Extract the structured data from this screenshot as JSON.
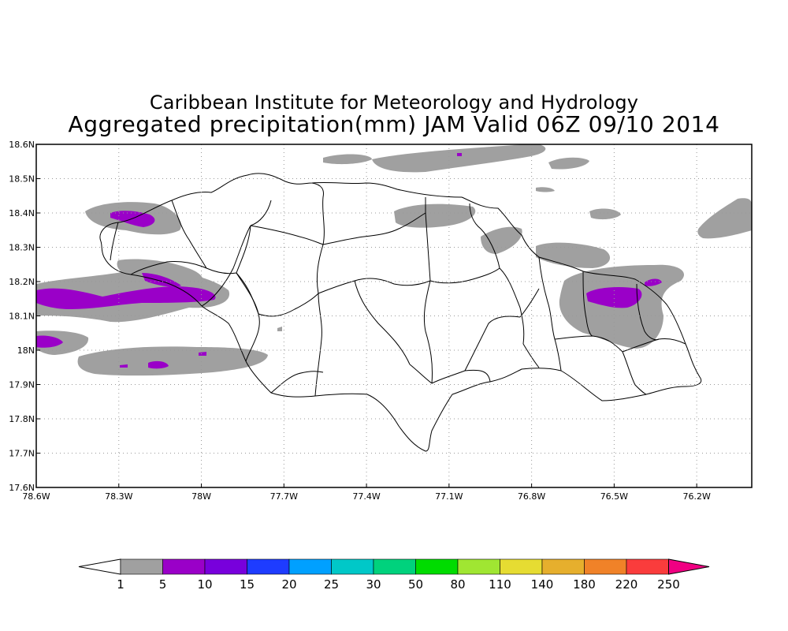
{
  "titles": {
    "line1": "Caribbean Institute for Meteorology and Hydrology",
    "line2": "Aggregated precipitation(mm) JAM Valid 06Z 09/10 2014"
  },
  "map": {
    "lon_range": [
      -78.6,
      -76.0
    ],
    "lat_range": [
      17.6,
      18.6
    ],
    "grid": true,
    "x_ticks": [
      {
        "value": -78.6,
        "label": "78.6W"
      },
      {
        "value": -78.3,
        "label": "78.3W"
      },
      {
        "value": -78.0,
        "label": "78W"
      },
      {
        "value": -77.7,
        "label": "77.7W"
      },
      {
        "value": -77.4,
        "label": "77.4W"
      },
      {
        "value": -77.1,
        "label": "77.1W"
      },
      {
        "value": -76.8,
        "label": "76.8W"
      },
      {
        "value": -76.5,
        "label": "76.5W"
      },
      {
        "value": -76.2,
        "label": "76.2W"
      }
    ],
    "y_ticks": [
      {
        "value": 18.6,
        "label": "18.6N"
      },
      {
        "value": 18.5,
        "label": "18.5N"
      },
      {
        "value": 18.4,
        "label": "18.4N"
      },
      {
        "value": 18.3,
        "label": "18.3N"
      },
      {
        "value": 18.2,
        "label": "18.2N"
      },
      {
        "value": 18.1,
        "label": "18.1N"
      },
      {
        "value": 18.0,
        "label": "18N"
      },
      {
        "value": 17.9,
        "label": "17.9N"
      },
      {
        "value": 17.8,
        "label": "17.8N"
      },
      {
        "value": 17.7,
        "label": "17.7N"
      },
      {
        "value": 17.6,
        "label": "17.6N"
      }
    ]
  },
  "colorbar": {
    "labels": [
      "1",
      "5",
      "10",
      "15",
      "20",
      "25",
      "30",
      "50",
      "80",
      "110",
      "140",
      "180",
      "220",
      "250"
    ],
    "colors": [
      "#a0a0a0",
      "#9a00c8",
      "#7800dc",
      "#1e3cff",
      "#00a0ff",
      "#00c8c8",
      "#00d27d",
      "#00dc00",
      "#a0e632",
      "#e6dc32",
      "#e6af2d",
      "#f08228",
      "#fa3c3c",
      "#f00082"
    ],
    "under_color": "#ffffff"
  },
  "precip_shading": {
    "gray_color": "#a0a0a0",
    "purple_color": "#9a00c8",
    "gray_level_mm": "1-5",
    "purple_level_mm": "5-10"
  }
}
